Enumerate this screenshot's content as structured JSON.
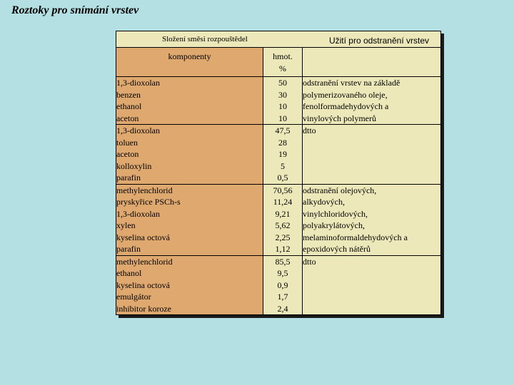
{
  "title": "Roztoky pro snímání vrstev",
  "header": {
    "left": "Složení směsi rozpouštědel",
    "right": "Užití pro odstranění vrstev"
  },
  "subheader": {
    "components": "komponenty",
    "mass_line1": "hmot.",
    "mass_line2": "%"
  },
  "rows": [
    {
      "components": [
        "1,3-dioxolan",
        "benzen",
        "ethanol",
        "aceton"
      ],
      "percents": [
        "50",
        "30",
        "10",
        "10"
      ],
      "usage": [
        "odstranění vrstev na základě",
        "polymerizovaného oleje,",
        "fenolformadehydových a",
        "vinylových polymerů"
      ]
    },
    {
      "components": [
        "1,3-dioxolan",
        "toluen",
        "aceton",
        "kolloxylin",
        "parafin"
      ],
      "percents": [
        "47,5",
        "28",
        "19",
        "5",
        "0,5"
      ],
      "usage": [
        "dtto"
      ]
    },
    {
      "components": [
        "methylenchlorid",
        "pryskyřice PSCh-s",
        "1,3-dioxolan",
        "xylen",
        "kyselina octová",
        "parafin"
      ],
      "percents": [
        "70,56",
        "11,24",
        "9,21",
        "5,62",
        "2,25",
        "1,12"
      ],
      "usage": [
        "odstranění olejových,",
        "alkydových,",
        "vinylchloridových,",
        "polyakrylátových,",
        "melaminoformaldehydových a",
        "epoxidových nátěrů"
      ]
    },
    {
      "components": [
        "methylenchlorid",
        "ethanol",
        "kyselina octová",
        "emulgátor",
        "inhibitor koroze"
      ],
      "percents": [
        "85,5",
        "9,5",
        "0,9",
        "1,7",
        "2,4"
      ],
      "usage": [
        "dtto"
      ]
    }
  ]
}
